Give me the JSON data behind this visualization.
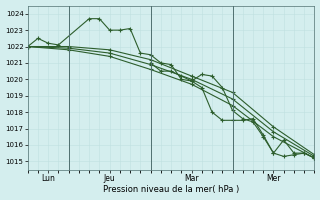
{
  "title": "Pression niveau de la mer( hPa )",
  "background_color": "#d4eeee",
  "grid_color_minor": "#c0e0e0",
  "grid_color_major": "#a8d0d0",
  "line_color": "#2d5e2d",
  "ylim": [
    1014.5,
    1024.5
  ],
  "yticks": [
    1015,
    1016,
    1017,
    1018,
    1019,
    1020,
    1021,
    1022,
    1023,
    1024
  ],
  "xlim": [
    0,
    168
  ],
  "xtick_labels": [
    "Lun",
    "Jeu",
    "Mar",
    "Mer"
  ],
  "xtick_positions": [
    12,
    48,
    96,
    144
  ],
  "vline_positions": [
    24,
    72,
    120
  ],
  "series": [
    {
      "x": [
        0,
        6,
        12,
        18,
        36,
        42,
        48,
        54,
        60,
        66,
        72,
        78,
        84,
        90,
        96,
        102,
        108,
        114,
        120,
        126,
        132,
        138,
        144,
        150,
        156,
        162,
        168
      ],
      "y": [
        1022.0,
        1022.5,
        1022.2,
        1022.1,
        1023.7,
        1023.7,
        1023.0,
        1023.0,
        1023.1,
        1021.6,
        1021.5,
        1021.0,
        1020.9,
        1020.0,
        1019.9,
        1020.3,
        1020.2,
        1019.5,
        1018.1,
        1017.6,
        1017.4,
        1016.5,
        1015.5,
        1015.3,
        1015.4,
        1015.5,
        1015.2
      ]
    },
    {
      "x": [
        0,
        24,
        48,
        72,
        96,
        120,
        144,
        168
      ],
      "y": [
        1022.0,
        1021.8,
        1021.4,
        1020.6,
        1019.7,
        1018.4,
        1016.5,
        1015.2
      ]
    },
    {
      "x": [
        0,
        24,
        48,
        72,
        96,
        120,
        144,
        168
      ],
      "y": [
        1022.0,
        1021.9,
        1021.6,
        1020.9,
        1020.0,
        1018.8,
        1016.8,
        1015.3
      ]
    },
    {
      "x": [
        0,
        24,
        48,
        72,
        96,
        120,
        144,
        168
      ],
      "y": [
        1022.0,
        1022.0,
        1021.8,
        1021.2,
        1020.2,
        1019.2,
        1017.1,
        1015.4
      ]
    },
    {
      "x": [
        72,
        78,
        84,
        90,
        96,
        102,
        108,
        114,
        120,
        126,
        132,
        138,
        144,
        150,
        156,
        162,
        168
      ],
      "y": [
        1021.0,
        1020.5,
        1020.5,
        1020.2,
        1019.9,
        1019.5,
        1018.0,
        1017.5,
        1017.5,
        1017.5,
        1017.6,
        1016.6,
        1015.5,
        1016.3,
        1015.5,
        1015.5,
        1015.2
      ]
    }
  ]
}
